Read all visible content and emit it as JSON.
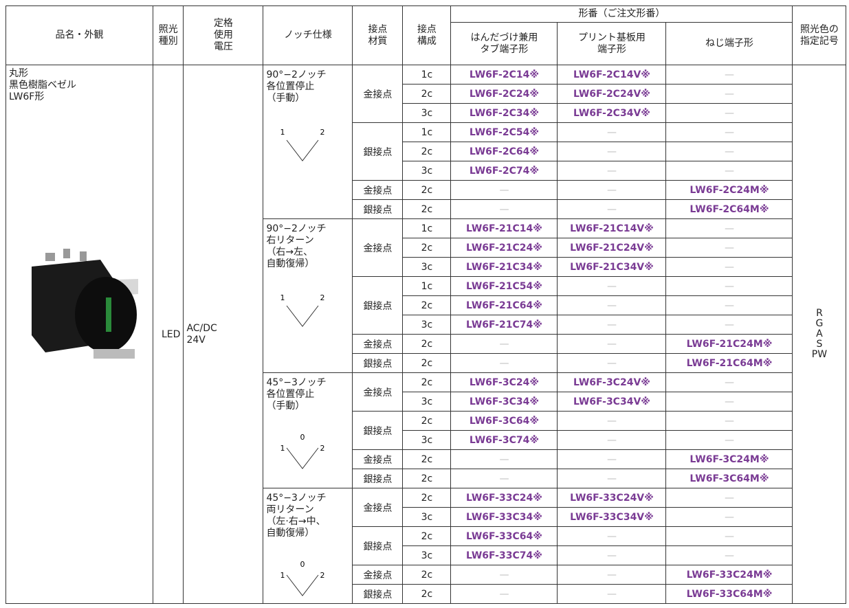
{
  "header": {
    "product": "品名・外観",
    "illumination": [
      "照光",
      "種別"
    ],
    "voltage": [
      "定格",
      "使用",
      "電圧"
    ],
    "notch": "ノッチ仕様",
    "material": [
      "接点",
      "材質"
    ],
    "contacts": [
      "接点",
      "構成"
    ],
    "model": "形番（ご注文形番）",
    "solder": [
      "はんだづけ兼用",
      "タブ端子形"
    ],
    "pcb": [
      "プリント基板用",
      "端子形"
    ],
    "screw": "ねじ端子形",
    "color": [
      "照光色の",
      "指定記号"
    ]
  },
  "product": {
    "name": [
      "丸形",
      "黒色樹脂ベゼル",
      "LW6F形"
    ],
    "illumination": "LED",
    "voltage": [
      "AC/DC",
      "24V"
    ],
    "colors": [
      "R",
      "G",
      "A",
      "S",
      "PW"
    ]
  },
  "groups": [
    {
      "spec": [
        "90°−2ノッチ",
        "各位置停止",
        "（手動）"
      ],
      "diagram": [
        "1",
        "2"
      ],
      "blocks": [
        {
          "material": "金接点",
          "rows": [
            [
              "1c",
              "LW6F-2C14※",
              "LW6F-2C14V※",
              "—"
            ],
            [
              "2c",
              "LW6F-2C24※",
              "LW6F-2C24V※",
              "—"
            ],
            [
              "3c",
              "LW6F-2C34※",
              "LW6F-2C34V※",
              "—"
            ]
          ]
        },
        {
          "material": "銀接点",
          "rows": [
            [
              "1c",
              "LW6F-2C54※",
              "—",
              "—"
            ],
            [
              "2c",
              "LW6F-2C64※",
              "—",
              "—"
            ],
            [
              "3c",
              "LW6F-2C74※",
              "—",
              "—"
            ]
          ]
        },
        {
          "material": "金接点",
          "rows": [
            [
              "2c",
              "—",
              "—",
              "LW6F-2C24M※"
            ]
          ]
        },
        {
          "material": "銀接点",
          "rows": [
            [
              "2c",
              "—",
              "—",
              "LW6F-2C64M※"
            ]
          ]
        }
      ]
    },
    {
      "spec": [
        "90°−2ノッチ",
        "右リターン",
        "（右→左、",
        "自動復帰）"
      ],
      "diagram": [
        "1",
        "2"
      ],
      "blocks": [
        {
          "material": "金接点",
          "rows": [
            [
              "1c",
              "LW6F-21C14※",
              "LW6F-21C14V※",
              "—"
            ],
            [
              "2c",
              "LW6F-21C24※",
              "LW6F-21C24V※",
              "—"
            ],
            [
              "3c",
              "LW6F-21C34※",
              "LW6F-21C34V※",
              "—"
            ]
          ]
        },
        {
          "material": "銀接点",
          "rows": [
            [
              "1c",
              "LW6F-21C54※",
              "—",
              "—"
            ],
            [
              "2c",
              "LW6F-21C64※",
              "—",
              "—"
            ],
            [
              "3c",
              "LW6F-21C74※",
              "—",
              "—"
            ]
          ]
        },
        {
          "material": "金接点",
          "rows": [
            [
              "2c",
              "—",
              "—",
              "LW6F-21C24M※"
            ]
          ]
        },
        {
          "material": "銀接点",
          "rows": [
            [
              "2c",
              "—",
              "—",
              "LW6F-21C64M※"
            ]
          ]
        }
      ]
    },
    {
      "spec": [
        "45°−3ノッチ",
        "各位置停止",
        "（手動）"
      ],
      "diagram": [
        "1",
        "0",
        "2"
      ],
      "blocks": [
        {
          "material": "金接点",
          "rows": [
            [
              "2c",
              "LW6F-3C24※",
              "LW6F-3C24V※",
              "—"
            ],
            [
              "3c",
              "LW6F-3C34※",
              "LW6F-3C34V※",
              "—"
            ]
          ]
        },
        {
          "material": "銀接点",
          "rows": [
            [
              "2c",
              "LW6F-3C64※",
              "—",
              "—"
            ],
            [
              "3c",
              "LW6F-3C74※",
              "—",
              "—"
            ]
          ]
        },
        {
          "material": "金接点",
          "rows": [
            [
              "2c",
              "—",
              "—",
              "LW6F-3C24M※"
            ]
          ]
        },
        {
          "material": "銀接点",
          "rows": [
            [
              "2c",
              "—",
              "—",
              "LW6F-3C64M※"
            ]
          ]
        }
      ]
    },
    {
      "spec": [
        "45°−3ノッチ",
        "両リターン",
        "（左·右→中、",
        "自動復帰）"
      ],
      "diagram": [
        "1",
        "0",
        "2"
      ],
      "blocks": [
        {
          "material": "金接点",
          "rows": [
            [
              "2c",
              "LW6F-33C24※",
              "LW6F-33C24V※",
              "—"
            ],
            [
              "3c",
              "LW6F-33C34※",
              "LW6F-33C34V※",
              "—"
            ]
          ]
        },
        {
          "material": "銀接点",
          "rows": [
            [
              "2c",
              "LW6F-33C64※",
              "—",
              "—"
            ],
            [
              "3c",
              "LW6F-33C74※",
              "—",
              "—"
            ]
          ]
        },
        {
          "material": "金接点",
          "rows": [
            [
              "2c",
              "—",
              "—",
              "LW6F-33C24M※"
            ]
          ]
        },
        {
          "material": "銀接点",
          "rows": [
            [
              "2c",
              "—",
              "—",
              "LW6F-33C64M※"
            ]
          ]
        }
      ]
    }
  ]
}
